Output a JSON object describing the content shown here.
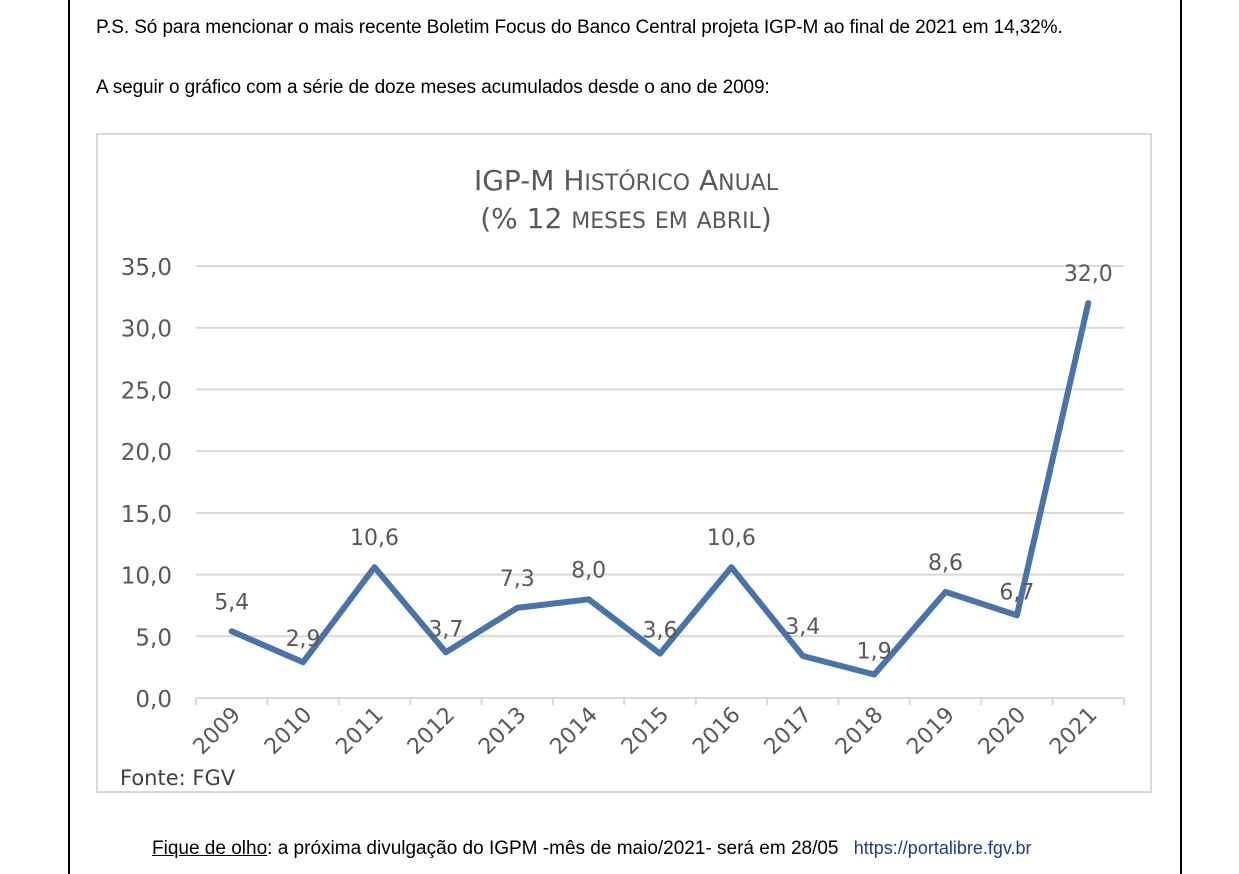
{
  "document": {
    "paragraph_ps": "P.S. Só para mencionar o mais recente Boletim Focus do Banco Central projeta IGP-M ao final de 2021 em 14,32%.",
    "paragraph_intro": "A seguir o gráfico com a série de doze meses acumulados desde o ano de 2009:",
    "footer_label": "Fique de olho",
    "footer_text": ": a próxima divulgação do IGPM -mês de maio/2021- será em 28/05",
    "footer_link": "https://portalibre.fgv.br"
  },
  "chart_data": {
    "type": "line",
    "title": "IGP-M Histórico Anual",
    "subtitle": "(% 12 meses em abril)",
    "source": "Fonte: FGV",
    "categories": [
      "2009",
      "2010",
      "2011",
      "2012",
      "2013",
      "2014",
      "2015",
      "2016",
      "2017",
      "2018",
      "2019",
      "2020",
      "2021"
    ],
    "series": [
      {
        "values": [
          5.4,
          2.9,
          10.6,
          3.7,
          7.3,
          8.0,
          3.6,
          10.6,
          3.4,
          1.9,
          8.6,
          6.7,
          32.0
        ]
      }
    ],
    "data_labels": [
      "5,4",
      "2,9",
      "10,6",
      "3,7",
      "7,3",
      "8,0",
      "3,6",
      "10,6",
      "3,4",
      "1,9",
      "8,6",
      "6,7",
      "32,0"
    ],
    "y_ticks": [
      "0,0",
      "5,0",
      "10,0",
      "15,0",
      "20,0",
      "25,0",
      "30,0",
      "35,0"
    ],
    "y_tick_values": [
      0,
      5,
      10,
      15,
      20,
      25,
      30,
      35
    ],
    "ylim": [
      0,
      35
    ],
    "grid": true,
    "legend": "none",
    "line_color": "#4a73a8",
    "grid_color": "#d9d9d9",
    "text_color": "#595959"
  }
}
